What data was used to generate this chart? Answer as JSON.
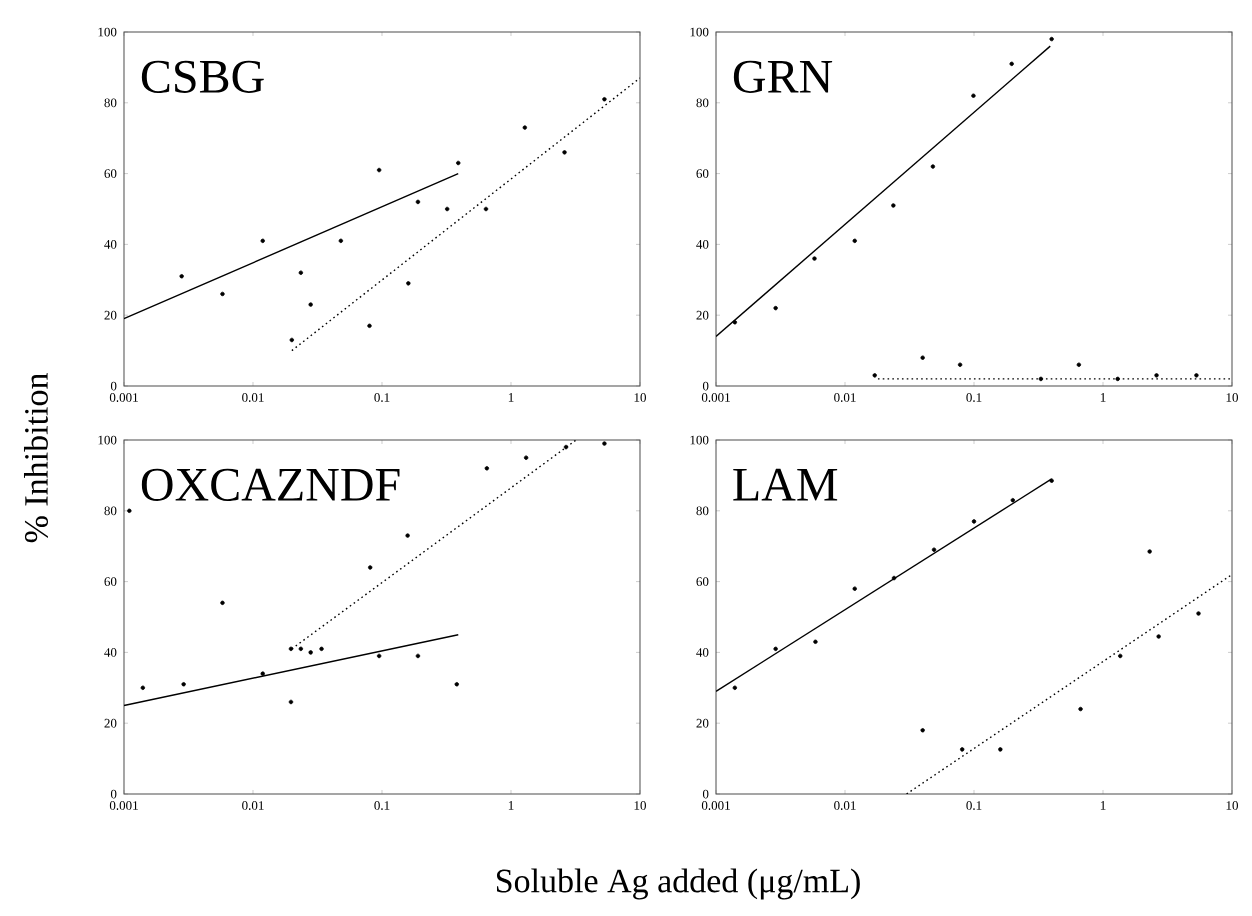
{
  "chart_data": [
    {
      "type": "scatter",
      "ylabel": "% Inhibition",
      "annotations": [
        "CSBG"
      ],
      "log": "x",
      "xlim": [
        0.001,
        10
      ],
      "ylim": [
        0,
        100
      ],
      "xticks": [
        0.001,
        0.01,
        0.1,
        1,
        10
      ],
      "yticks": [
        0,
        20,
        40,
        60,
        80,
        100
      ],
      "marker": "circle",
      "series": [
        {
          "color": "#000000",
          "x": [
            0.0028,
            0.0058,
            0.0119,
            0.02,
            0.0235,
            0.028,
            0.048,
            0.08,
            0.095,
            0.16,
            0.19,
            0.32,
            0.39,
            0.64,
            1.28,
            2.6,
            5.3
          ],
          "values": [
            31,
            26,
            41,
            13,
            32,
            23,
            41,
            17,
            61,
            29,
            52,
            50,
            63,
            50,
            73,
            66,
            81
          ]
        },
        {
          "type": "line",
          "color": "#000000",
          "line_style": "solid",
          "marker": "none",
          "x": [
            0.001,
            0.39
          ],
          "values": [
            19,
            60
          ]
        },
        {
          "type": "line",
          "color": "#000000",
          "line_style": "dotted",
          "marker": "none",
          "x": [
            0.02,
            10
          ],
          "values": [
            10,
            87
          ]
        }
      ]
    },
    {
      "type": "scatter",
      "annotations": [
        "GRN"
      ],
      "log": "x",
      "xlim": [
        0.001,
        10
      ],
      "ylim": [
        0,
        100
      ],
      "xticks": [
        0.001,
        0.01,
        0.1,
        1,
        10
      ],
      "yticks": [
        0,
        20,
        40,
        60,
        80,
        100
      ],
      "marker": "circle",
      "series": [
        {
          "color": "#000000",
          "x": [
            0.0014,
            0.0029,
            0.0058,
            0.0119,
            0.017,
            0.0237,
            0.04,
            0.048,
            0.078,
            0.099,
            0.196,
            0.33,
            0.4,
            0.65,
            1.3,
            2.6,
            5.3
          ],
          "values": [
            18,
            22,
            36,
            41,
            3,
            51,
            8,
            62,
            6,
            82,
            91,
            2,
            98,
            6,
            2,
            3,
            3
          ]
        },
        {
          "type": "line",
          "color": "#000000",
          "line_style": "solid",
          "marker": "none",
          "x": [
            0.001,
            0.39
          ],
          "values": [
            14,
            96
          ]
        },
        {
          "type": "line",
          "color": "#000000",
          "line_style": "dotted",
          "marker": "none",
          "x": [
            0.018,
            10
          ],
          "values": [
            2,
            2
          ]
        }
      ]
    },
    {
      "type": "scatter",
      "xlabel": "Soluble Ag added (μg/mL)",
      "annotations": [
        "OXCAZNDF"
      ],
      "log": "x",
      "xlim": [
        0.001,
        10
      ],
      "ylim": [
        0,
        100
      ],
      "xticks": [
        0.001,
        0.01,
        0.1,
        1,
        10
      ],
      "yticks": [
        0,
        20,
        40,
        60,
        80,
        100
      ],
      "marker": "circle",
      "series": [
        {
          "color": "#000000",
          "x": [
            0.0011,
            0.0014,
            0.0029,
            0.0058,
            0.0119,
            0.0197,
            0.0197,
            0.0235,
            0.028,
            0.034,
            0.081,
            0.095,
            0.158,
            0.19,
            0.38,
            0.65,
            1.31,
            2.67,
            5.3
          ],
          "values": [
            80,
            30,
            31,
            54,
            34,
            26,
            41,
            41,
            40,
            41,
            64,
            39,
            73,
            39,
            31,
            92,
            95,
            98,
            99
          ]
        },
        {
          "type": "line",
          "color": "#000000",
          "line_style": "solid",
          "marker": "none",
          "x": [
            0.001,
            0.39
          ],
          "values": [
            25,
            45
          ]
        },
        {
          "type": "line",
          "color": "#000000",
          "line_style": "dotted",
          "marker": "none",
          "x": [
            0.02,
            3.2
          ],
          "values": [
            41,
            100
          ]
        }
      ]
    },
    {
      "type": "scatter",
      "annotations": [
        "LAM"
      ],
      "log": "x",
      "xlim": [
        0.001,
        10
      ],
      "ylim": [
        0,
        100
      ],
      "xticks": [
        0.001,
        0.01,
        0.1,
        1,
        10
      ],
      "yticks": [
        0,
        20,
        40,
        60,
        80,
        100
      ],
      "marker": "circle",
      "series": [
        {
          "color": "#000000",
          "x": [
            0.0014,
            0.0029,
            0.0059,
            0.0119,
            0.024,
            0.04,
            0.049,
            0.081,
            0.1,
            0.16,
            0.2,
            0.4,
            0.67,
            1.36,
            2.3,
            2.7,
            5.5
          ],
          "values": [
            30,
            41,
            43,
            58,
            61,
            18,
            69,
            12.6,
            77,
            12.6,
            83,
            88.5,
            24,
            39,
            68.5,
            44.5,
            51
          ]
        },
        {
          "type": "line",
          "color": "#000000",
          "line_style": "solid",
          "marker": "none",
          "x": [
            0.001,
            0.4
          ],
          "values": [
            29,
            89
          ]
        },
        {
          "type": "line",
          "color": "#000000",
          "line_style": "dotted",
          "marker": "none",
          "x": [
            0.03,
            10
          ],
          "values": [
            0,
            62
          ]
        }
      ]
    }
  ]
}
